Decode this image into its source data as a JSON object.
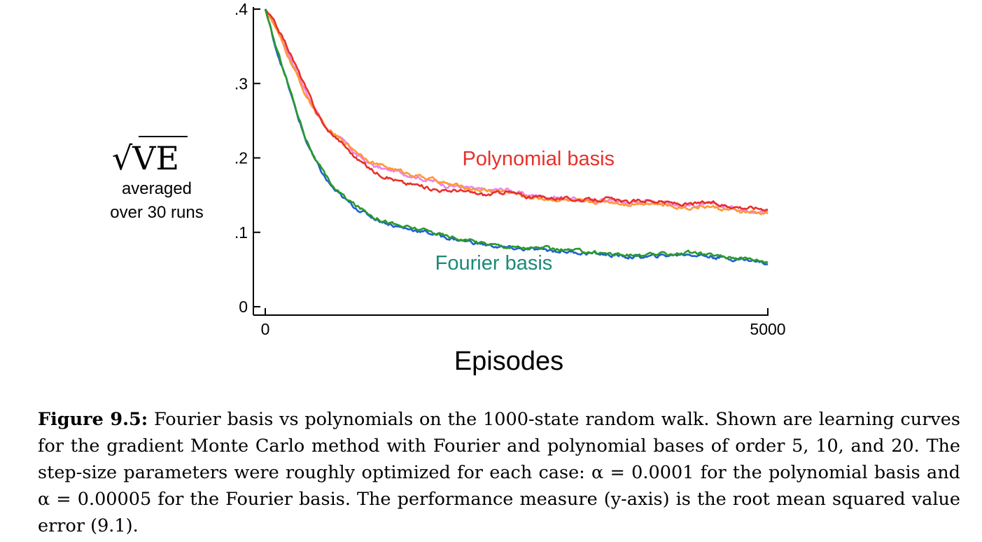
{
  "chart_data": {
    "type": "line",
    "ylabel_main": "√VE",
    "ylabel_lines": [
      "averaged",
      "over 30 runs"
    ],
    "xlabel": "Episodes",
    "xlim": [
      0,
      5000
    ],
    "ylim": [
      0,
      0.4
    ],
    "x_ticks": [
      {
        "value": 0,
        "label": "0"
      },
      {
        "value": 5000,
        "label": "5000"
      }
    ],
    "y_ticks": [
      {
        "value": 0,
        "label": "0"
      },
      {
        "value": 0.1,
        "label": ".1"
      },
      {
        "value": 0.2,
        "label": ".2"
      },
      {
        "value": 0.3,
        "label": ".3"
      },
      {
        "value": 0.4,
        "label": ".4"
      }
    ],
    "series": [
      {
        "group": "polynomial",
        "color": "#ee82ee",
        "x": [
          0,
          100,
          200,
          300,
          400,
          500,
          600,
          700,
          800,
          900,
          1000,
          1100,
          1200,
          1300,
          1400,
          1500,
          1600,
          1700,
          1800,
          1900,
          2000,
          2200,
          2400,
          2600,
          2800,
          3000,
          3200,
          3400,
          3600,
          3800,
          4000,
          4200,
          4400,
          4600,
          4800,
          5000
        ],
        "values": [
          0.4,
          0.38,
          0.35,
          0.32,
          0.29,
          0.265,
          0.24,
          0.23,
          0.22,
          0.205,
          0.195,
          0.188,
          0.184,
          0.182,
          0.178,
          0.175,
          0.17,
          0.168,
          0.163,
          0.162,
          0.16,
          0.156,
          0.158,
          0.15,
          0.148,
          0.146,
          0.142,
          0.144,
          0.14,
          0.142,
          0.14,
          0.136,
          0.138,
          0.134,
          0.13,
          0.128
        ]
      },
      {
        "group": "polynomial",
        "color": "#ff9933",
        "x": [
          0,
          100,
          200,
          300,
          400,
          500,
          600,
          700,
          800,
          900,
          1000,
          1100,
          1200,
          1300,
          1400,
          1500,
          1600,
          1700,
          1800,
          1900,
          2000,
          2200,
          2400,
          2600,
          2800,
          3000,
          3200,
          3400,
          3600,
          3800,
          4000,
          4200,
          4400,
          4600,
          4800,
          5000
        ],
        "values": [
          0.4,
          0.375,
          0.345,
          0.315,
          0.285,
          0.262,
          0.24,
          0.23,
          0.22,
          0.21,
          0.2,
          0.192,
          0.188,
          0.184,
          0.18,
          0.177,
          0.173,
          0.17,
          0.165,
          0.163,
          0.16,
          0.156,
          0.155,
          0.148,
          0.145,
          0.143,
          0.14,
          0.142,
          0.138,
          0.14,
          0.136,
          0.133,
          0.135,
          0.13,
          0.127,
          0.125
        ]
      },
      {
        "group": "polynomial",
        "color": "#e8302a",
        "x": [
          0,
          100,
          200,
          300,
          400,
          500,
          600,
          700,
          800,
          900,
          1000,
          1100,
          1200,
          1300,
          1400,
          1500,
          1600,
          1700,
          1800,
          1900,
          2000,
          2200,
          2400,
          2600,
          2800,
          3000,
          3200,
          3400,
          3600,
          3800,
          4000,
          4200,
          4400,
          4600,
          4800,
          5000
        ],
        "values": [
          0.4,
          0.38,
          0.355,
          0.325,
          0.295,
          0.265,
          0.24,
          0.228,
          0.215,
          0.2,
          0.19,
          0.18,
          0.175,
          0.17,
          0.165,
          0.164,
          0.16,
          0.158,
          0.155,
          0.157,
          0.154,
          0.15,
          0.155,
          0.148,
          0.147,
          0.145,
          0.143,
          0.145,
          0.14,
          0.143,
          0.14,
          0.137,
          0.14,
          0.136,
          0.133,
          0.132
        ]
      },
      {
        "group": "fourier",
        "color": "#1f5fd6",
        "x": [
          0,
          50,
          100,
          200,
          300,
          400,
          500,
          600,
          700,
          800,
          900,
          1000,
          1100,
          1200,
          1300,
          1400,
          1500,
          1600,
          1700,
          1800,
          2000,
          2200,
          2400,
          2600,
          2800,
          3000,
          3200,
          3400,
          3600,
          3800,
          4000,
          4200,
          4400,
          4600,
          4800,
          5000
        ],
        "values": [
          0.4,
          0.375,
          0.35,
          0.31,
          0.265,
          0.225,
          0.195,
          0.172,
          0.155,
          0.143,
          0.133,
          0.125,
          0.118,
          0.113,
          0.108,
          0.105,
          0.103,
          0.1,
          0.097,
          0.093,
          0.088,
          0.083,
          0.079,
          0.077,
          0.076,
          0.074,
          0.072,
          0.07,
          0.067,
          0.067,
          0.069,
          0.071,
          0.068,
          0.065,
          0.063,
          0.058
        ]
      },
      {
        "group": "fourier",
        "color": "#2a9a2a",
        "x": [
          0,
          50,
          100,
          200,
          300,
          400,
          500,
          600,
          700,
          800,
          900,
          1000,
          1100,
          1200,
          1300,
          1400,
          1500,
          1600,
          1700,
          1800,
          2000,
          2200,
          2400,
          2600,
          2800,
          3000,
          3200,
          3400,
          3600,
          3800,
          4000,
          4200,
          4400,
          4600,
          4800,
          5000
        ],
        "values": [
          0.4,
          0.376,
          0.352,
          0.312,
          0.268,
          0.228,
          0.198,
          0.175,
          0.158,
          0.146,
          0.136,
          0.128,
          0.12,
          0.115,
          0.11,
          0.107,
          0.105,
          0.102,
          0.099,
          0.095,
          0.09,
          0.085,
          0.081,
          0.079,
          0.078,
          0.076,
          0.074,
          0.072,
          0.069,
          0.069,
          0.071,
          0.073,
          0.07,
          0.067,
          0.065,
          0.061
        ]
      }
    ],
    "annotations": [
      {
        "text": "Polynomial basis",
        "color": "#e8302a",
        "x": 1960,
        "y": 0.19
      },
      {
        "text": "Fourier basis",
        "color": "#1a8a78",
        "x": 1690,
        "y": 0.05
      }
    ]
  },
  "caption": {
    "label": "Figure 9.5:",
    "text": "Fourier basis vs polynomials on the 1000-state random walk. Shown are learning curves for the gradient Monte Carlo method with Fourier and polynomial bases of order 5, 10, and 20. The step-size parameters were roughly optimized for each case: α = 0.0001 for the polynomial basis and α = 0.00005 for the Fourier basis. The performance measure (y-axis) is the root mean squared value error (9.1)."
  }
}
